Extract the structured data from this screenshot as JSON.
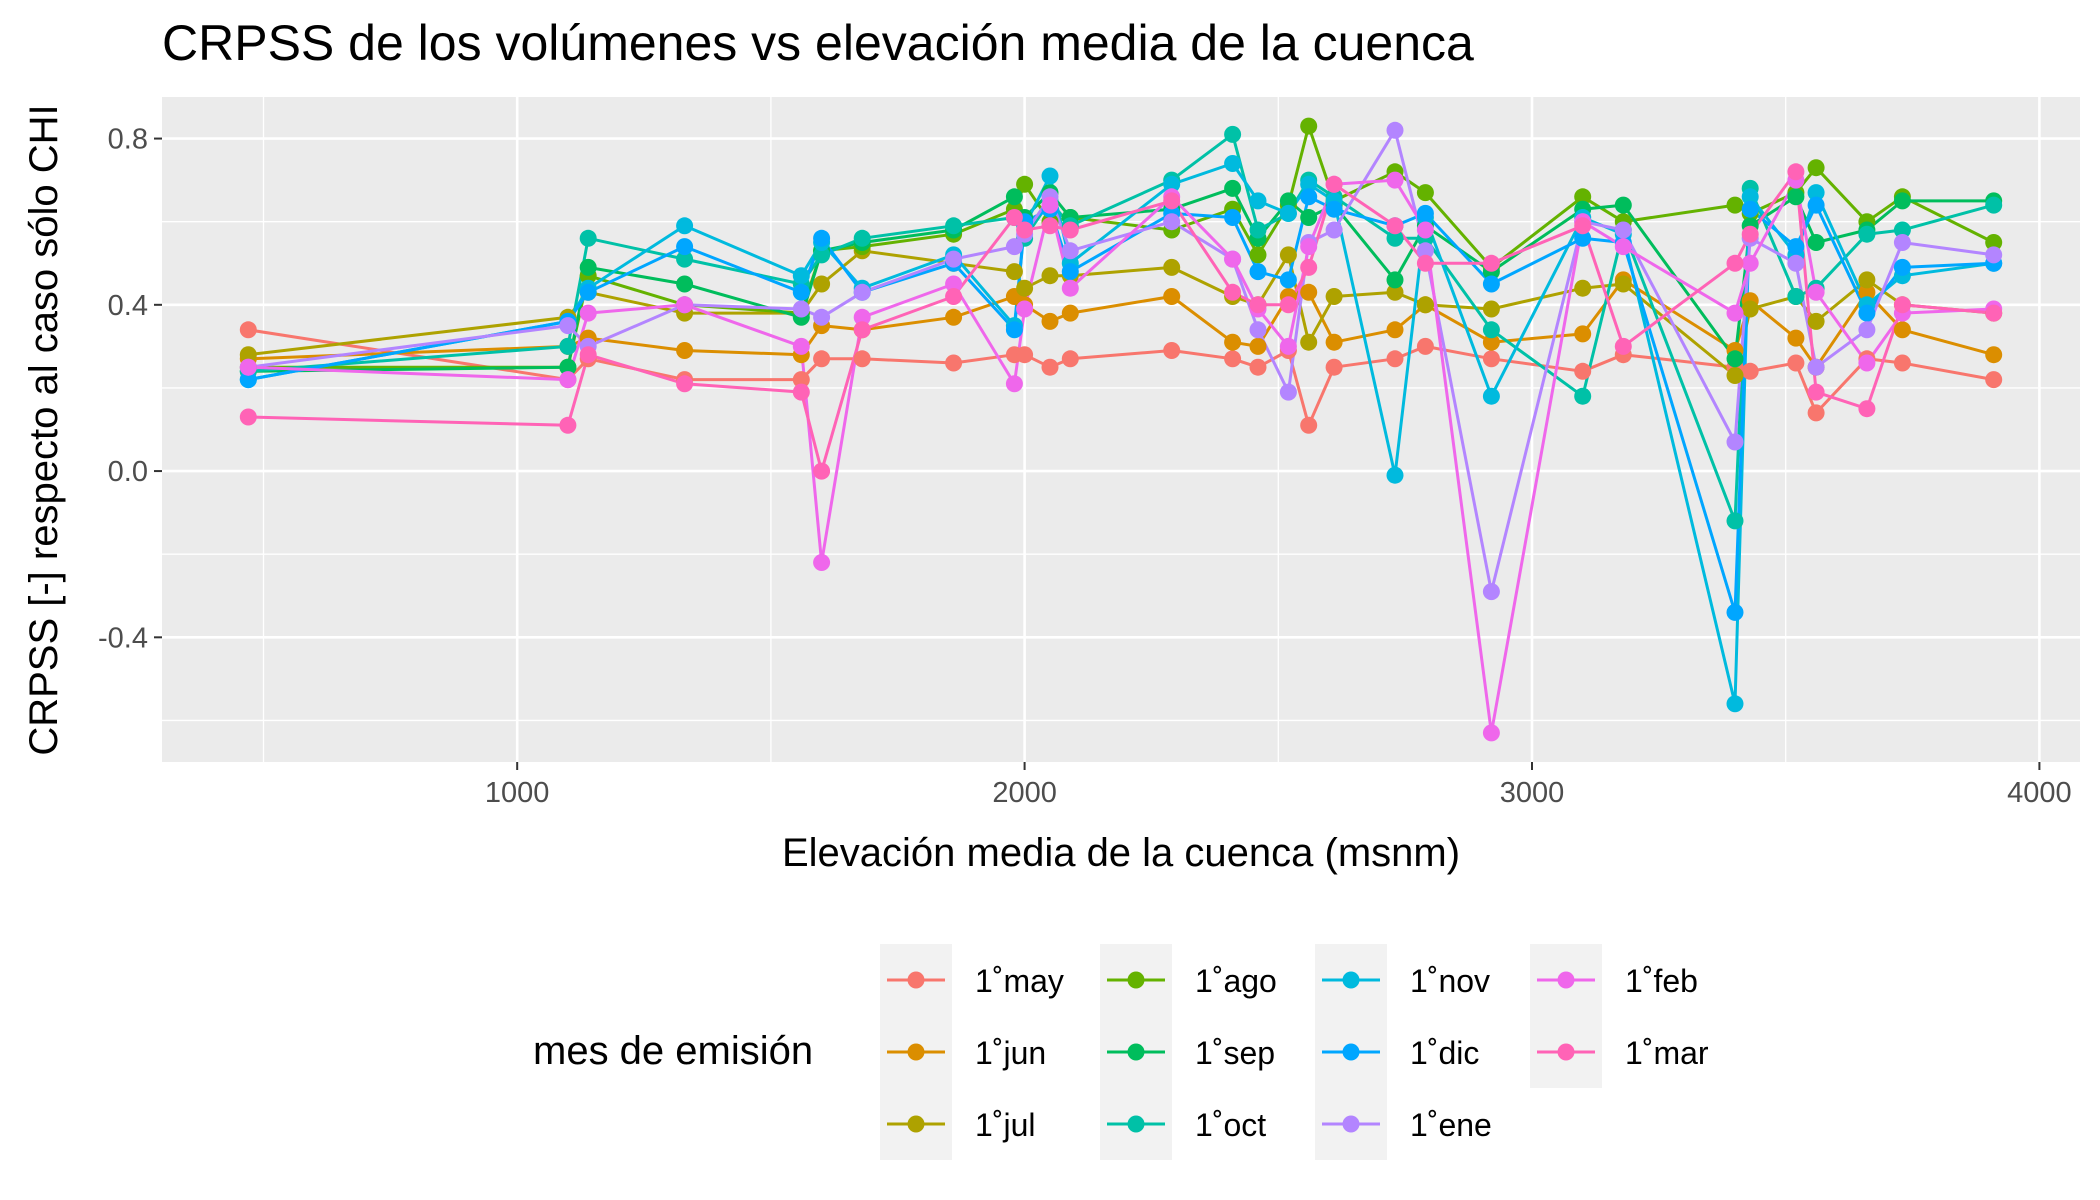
{
  "chart_data": {
    "type": "line",
    "title": "CRPSS de los volúmenes vs elevación media de la cuenca",
    "xlabel": "Elevación media de la cuenca (msnm)",
    "ylabel": "CRPSS [-] respecto al caso sólo CHI",
    "xlim": [
      300,
      4080
    ],
    "ylim": [
      -0.7,
      0.9
    ],
    "x_ticks": [
      1000,
      2000,
      3000,
      4000
    ],
    "y_ticks": [
      -0.4,
      0.0,
      0.4,
      0.8
    ],
    "x_tick_labels": [
      "1000",
      "2000",
      "3000",
      "4000"
    ],
    "y_tick_labels": [
      "-0.4",
      "0.0",
      "0.4",
      "0.8"
    ],
    "grid": true,
    "legend_title": "mes de emisión",
    "legend_position": "bottom",
    "x": [
      470,
      1100,
      1140,
      1330,
      1560,
      1600,
      1680,
      1860,
      1980,
      2000,
      2050,
      2090,
      2290,
      2410,
      2460,
      2520,
      2560,
      2610,
      2730,
      2790,
      2920,
      3100,
      3180,
      3400,
      3430,
      3520,
      3560,
      3660,
      3730,
      3910
    ],
    "series": [
      {
        "name": "1˚may",
        "color": "#F8766D",
        "values": [
          0.34,
          0.22,
          0.27,
          0.22,
          0.22,
          0.27,
          0.27,
          0.26,
          0.28,
          0.28,
          0.25,
          0.27,
          0.29,
          0.27,
          0.25,
          0.29,
          0.11,
          0.25,
          0.27,
          0.3,
          0.27,
          0.24,
          0.28,
          0.25,
          0.24,
          0.26,
          0.14,
          0.27,
          0.26,
          0.22
        ]
      },
      {
        "name": "1˚jun",
        "color": "#DB8E00",
        "values": [
          0.27,
          0.3,
          0.32,
          0.29,
          0.28,
          0.35,
          0.34,
          0.37,
          0.42,
          0.4,
          0.36,
          0.38,
          0.42,
          0.31,
          0.3,
          0.42,
          0.43,
          0.31,
          0.34,
          0.4,
          0.31,
          0.33,
          0.46,
          0.29,
          0.41,
          0.32,
          0.25,
          0.43,
          0.34,
          0.28
        ]
      },
      {
        "name": "1˚jul",
        "color": "#AEA200",
        "values": [
          0.28,
          0.37,
          0.43,
          0.38,
          0.38,
          0.45,
          0.53,
          0.5,
          0.48,
          0.44,
          0.47,
          0.47,
          0.49,
          0.42,
          0.4,
          0.52,
          0.31,
          0.42,
          0.43,
          0.4,
          0.39,
          0.44,
          0.45,
          0.23,
          0.39,
          0.42,
          0.36,
          0.46,
          0.4,
          0.38
        ]
      },
      {
        "name": "1˚ago",
        "color": "#64B200",
        "values": [
          0.25,
          0.25,
          0.47,
          0.4,
          0.38,
          0.53,
          0.54,
          0.57,
          0.63,
          0.69,
          0.6,
          0.61,
          0.58,
          0.63,
          0.52,
          0.64,
          0.83,
          0.65,
          0.72,
          0.67,
          0.49,
          0.66,
          0.6,
          0.64,
          0.62,
          0.67,
          0.73,
          0.6,
          0.66,
          0.55
        ]
      },
      {
        "name": "1˚sep",
        "color": "#00BD5C",
        "values": [
          0.24,
          0.25,
          0.49,
          0.45,
          0.37,
          0.53,
          0.55,
          0.58,
          0.66,
          0.61,
          0.67,
          0.61,
          0.63,
          0.68,
          0.56,
          0.65,
          0.61,
          0.64,
          0.46,
          0.59,
          0.48,
          0.63,
          0.64,
          0.27,
          0.59,
          0.66,
          0.55,
          0.58,
          0.65,
          0.65
        ]
      },
      {
        "name": "1˚oct",
        "color": "#00C1A7",
        "values": [
          0.24,
          0.3,
          0.56,
          0.51,
          0.45,
          0.52,
          0.56,
          0.59,
          0.61,
          0.56,
          0.65,
          0.59,
          0.7,
          0.81,
          0.58,
          0.62,
          0.7,
          0.66,
          0.56,
          0.56,
          0.34,
          0.18,
          0.58,
          -0.12,
          0.68,
          0.42,
          0.44,
          0.57,
          0.58,
          0.64
        ]
      },
      {
        "name": "1˚nov",
        "color": "#00BADE",
        "values": [
          0.22,
          0.36,
          0.44,
          0.59,
          0.47,
          0.55,
          0.44,
          0.52,
          0.35,
          0.59,
          0.71,
          0.5,
          0.69,
          0.74,
          0.65,
          0.62,
          0.69,
          0.65,
          -0.01,
          0.61,
          0.18,
          0.61,
          0.57,
          -0.56,
          0.66,
          0.52,
          0.67,
          0.4,
          0.47,
          0.5
        ]
      },
      {
        "name": "1˚dic",
        "color": "#00A6FF",
        "values": [
          0.22,
          0.36,
          0.43,
          0.54,
          0.43,
          0.56,
          0.43,
          0.5,
          0.34,
          0.6,
          0.63,
          0.48,
          0.62,
          0.61,
          0.48,
          0.46,
          0.66,
          0.63,
          0.59,
          0.62,
          0.45,
          0.56,
          0.55,
          -0.34,
          0.63,
          0.54,
          0.64,
          0.38,
          0.49,
          0.5
        ]
      },
      {
        "name": "1˚ene",
        "color": "#B385FF",
        "values": [
          0.25,
          0.35,
          0.3,
          0.4,
          0.39,
          0.37,
          0.43,
          0.51,
          0.54,
          0.57,
          0.66,
          0.53,
          0.6,
          0.51,
          0.34,
          0.19,
          0.55,
          0.58,
          0.82,
          0.53,
          -0.29,
          0.6,
          0.58,
          0.07,
          0.56,
          0.5,
          0.25,
          0.34,
          0.55,
          0.52
        ]
      },
      {
        "name": "1˚feb",
        "color": "#EF67EB",
        "values": [
          0.25,
          0.22,
          0.38,
          0.4,
          0.3,
          -0.22,
          0.37,
          0.45,
          0.21,
          0.39,
          0.64,
          0.44,
          0.66,
          0.51,
          0.39,
          0.3,
          0.54,
          0.69,
          0.7,
          0.58,
          -0.63,
          0.6,
          0.54,
          0.38,
          0.5,
          0.7,
          0.43,
          0.26,
          0.38,
          0.39
        ]
      },
      {
        "name": "1˚mar",
        "color": "#FF63B6",
        "values": [
          0.13,
          0.11,
          0.28,
          0.21,
          0.19,
          0.0,
          0.34,
          0.42,
          0.61,
          0.58,
          0.59,
          0.58,
          0.65,
          0.43,
          0.4,
          0.4,
          0.49,
          0.69,
          0.59,
          0.5,
          0.5,
          0.59,
          0.3,
          0.5,
          0.57,
          0.72,
          0.19,
          0.15,
          0.4,
          0.38
        ]
      }
    ]
  }
}
